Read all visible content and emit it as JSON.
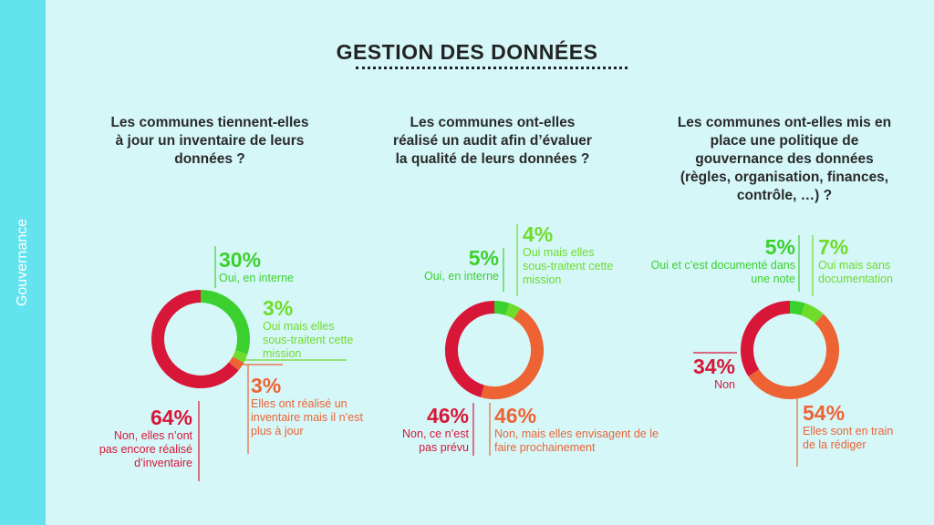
{
  "sidebar": {
    "label": "Gouvernance"
  },
  "title": "GESTION DES DONNÉES",
  "colors": {
    "green": "#3cd02e",
    "lime": "#6fdc2b",
    "orange": "#ee6334",
    "red": "#d81638",
    "background": "#d5f7f8",
    "sidebar": "#62e3ee"
  },
  "chart_data": [
    {
      "type": "pie",
      "title": "Les communes tiennent-elles à jour un inventaire de leurs données ?",
      "labels": [
        "Oui, en interne",
        "Oui mais elles sous-traitent cette mission",
        "Elles ont réalisé un inventaire mais il n’est plus à jour",
        "Non, elles n’ont pas encore réalisé d’inventaire"
      ],
      "values": [
        30,
        3,
        3,
        64
      ],
      "display": [
        "30%",
        "3%",
        "3%",
        "64%"
      ]
    },
    {
      "type": "pie",
      "title": "Les communes ont-elles réalisé un audit afin d’évaluer la qualité de leurs données ?",
      "labels": [
        "Oui, en interne",
        "Oui mais elles sous-traitent cette mission",
        "Non, mais elles envisagent de le faire prochainement",
        "Non, ce n’est pas prévu"
      ],
      "values": [
        5,
        4,
        46,
        46
      ],
      "display": [
        "5%",
        "4%",
        "46%",
        "46%"
      ]
    },
    {
      "type": "pie",
      "title": "Les communes ont-elles mis en place une politique de gouvernance des données (règles, organisation, finances, contrôle, …) ?",
      "labels": [
        "Oui et c’est documenté dans une note",
        "Oui mais sans documentation",
        "Elles sont en train de la rédiger",
        "Non"
      ],
      "values": [
        5,
        7,
        54,
        34
      ],
      "display": [
        "5%",
        "7%",
        "54%",
        "34%"
      ]
    }
  ]
}
